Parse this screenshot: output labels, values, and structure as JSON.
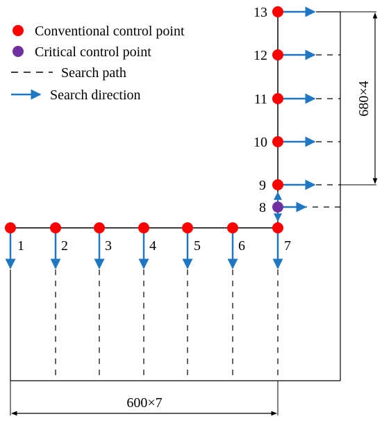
{
  "legend": {
    "conventional": "Conventional control point",
    "critical": "Critical control point",
    "search_path": "Search path",
    "search_direction": "Search direction"
  },
  "dimensions": {
    "horizontal": "600×7",
    "vertical": "680×4"
  },
  "points": {
    "bottom": [
      "1",
      "2",
      "3",
      "4",
      "5",
      "6",
      "7"
    ],
    "vertical": [
      "13",
      "12",
      "11",
      "10",
      "9"
    ],
    "critical": "8"
  },
  "colors": {
    "conventional": "#ff0000",
    "critical": "#7030a0",
    "arrow": "#1f77c4",
    "line": "#000000"
  }
}
